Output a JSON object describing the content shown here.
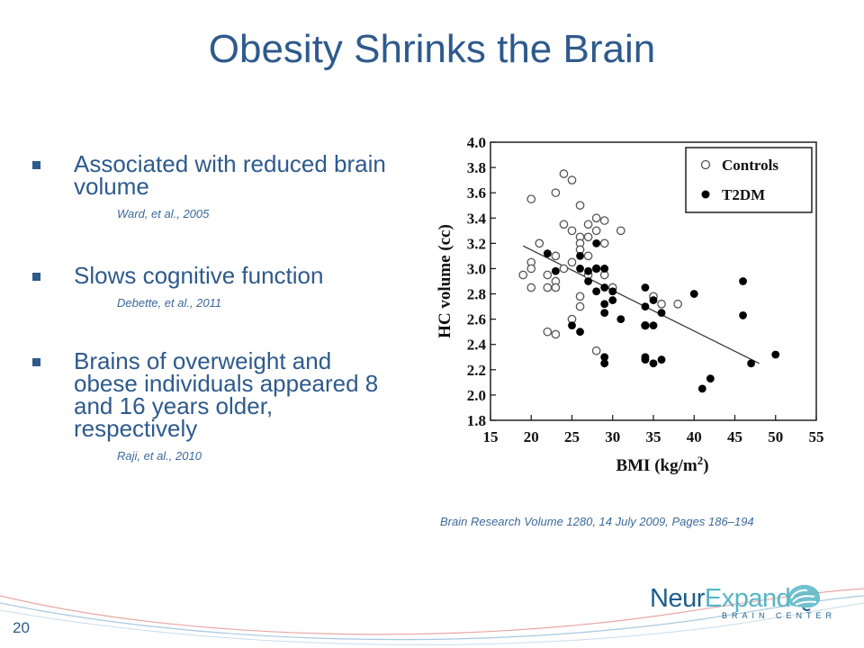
{
  "slide": {
    "title": "Obesity Shrinks the Brain",
    "page_number": "20",
    "accent_color": "#2e5a8c"
  },
  "bullets": [
    {
      "text": "Associated with reduced brain volume",
      "citation": "Ward, et al., 2005"
    },
    {
      "text": "Slows cognitive function",
      "citation": "Debette, et al., 2011"
    },
    {
      "text": "Brains of overweight and obese individuals appeared 8 and 16 years older, respectively",
      "citation": "Raji, et al., 2010"
    }
  ],
  "figure_source": "Brain Research Volume 1280, 14 July 2009, Pages 186–194",
  "logo": {
    "neur": "Neur",
    "expand": "Expand",
    "subtitle": "BRAIN CENTER",
    "colors": {
      "dark": "#1c5d8d",
      "light": "#56b6c6"
    }
  },
  "chart_data": {
    "type": "scatter",
    "title": "",
    "xlabel": "BMI (kg/m",
    "xlabel_superscript": "2",
    "xlabel_close": ")",
    "ylabel": "HC volume (cc)",
    "xlim": [
      15,
      55
    ],
    "ylim": [
      1.8,
      4.0
    ],
    "x_ticks": [
      "15",
      "20",
      "25",
      "30",
      "35",
      "40",
      "45",
      "50",
      "55"
    ],
    "y_ticks": [
      "1.8",
      "2.0",
      "2.2",
      "2.4",
      "2.6",
      "2.8",
      "3.0",
      "3.2",
      "3.4",
      "3.6",
      "3.8",
      "4.0"
    ],
    "legend_position": "top-right",
    "grid": false,
    "series": [
      {
        "name": "Controls",
        "marker": "open-circle",
        "points": [
          [
            19,
            2.95
          ],
          [
            20,
            3.55
          ],
          [
            20,
            3.05
          ],
          [
            20,
            3.0
          ],
          [
            20,
            2.85
          ],
          [
            21,
            3.2
          ],
          [
            22,
            2.95
          ],
          [
            22,
            2.85
          ],
          [
            22,
            2.5
          ],
          [
            23,
            3.6
          ],
          [
            23,
            3.1
          ],
          [
            23,
            2.9
          ],
          [
            23,
            2.85
          ],
          [
            23,
            2.48
          ],
          [
            24,
            3.75
          ],
          [
            24,
            3.35
          ],
          [
            24,
            3.0
          ],
          [
            25,
            3.7
          ],
          [
            25,
            3.3
          ],
          [
            25,
            3.05
          ],
          [
            25,
            2.6
          ],
          [
            26,
            3.5
          ],
          [
            26,
            3.25
          ],
          [
            26,
            3.2
          ],
          [
            26,
            3.15
          ],
          [
            26,
            2.78
          ],
          [
            26,
            2.7
          ],
          [
            27,
            3.35
          ],
          [
            27,
            3.25
          ],
          [
            27,
            3.1
          ],
          [
            27,
            2.95
          ],
          [
            28,
            3.4
          ],
          [
            28,
            3.3
          ],
          [
            28,
            3.0
          ],
          [
            28,
            2.35
          ],
          [
            29,
            3.38
          ],
          [
            29,
            3.2
          ],
          [
            29,
            2.95
          ],
          [
            30,
            2.85
          ],
          [
            31,
            3.3
          ],
          [
            34,
            2.55
          ],
          [
            35,
            2.78
          ],
          [
            36,
            2.72
          ],
          [
            38,
            2.72
          ]
        ]
      },
      {
        "name": "T2DM",
        "marker": "filled-circle",
        "points": [
          [
            22,
            3.12
          ],
          [
            23,
            2.98
          ],
          [
            25,
            2.55
          ],
          [
            26,
            3.1
          ],
          [
            26,
            3.0
          ],
          [
            26,
            2.5
          ],
          [
            27,
            2.98
          ],
          [
            27,
            2.9
          ],
          [
            28,
            3.2
          ],
          [
            28,
            3.0
          ],
          [
            28,
            2.82
          ],
          [
            29,
            3.0
          ],
          [
            29,
            2.85
          ],
          [
            29,
            2.72
          ],
          [
            29,
            2.65
          ],
          [
            29,
            2.3
          ],
          [
            29,
            2.25
          ],
          [
            30,
            2.82
          ],
          [
            30,
            2.75
          ],
          [
            31,
            2.6
          ],
          [
            34,
            2.85
          ],
          [
            34,
            2.7
          ],
          [
            34,
            2.55
          ],
          [
            34,
            2.3
          ],
          [
            34,
            2.28
          ],
          [
            35,
            2.75
          ],
          [
            35,
            2.55
          ],
          [
            35,
            2.25
          ],
          [
            36,
            2.65
          ],
          [
            36,
            2.28
          ],
          [
            40,
            2.8
          ],
          [
            41,
            2.05
          ],
          [
            42,
            2.13
          ],
          [
            46,
            2.9
          ],
          [
            46,
            2.63
          ],
          [
            47,
            2.25
          ],
          [
            50,
            2.32
          ]
        ]
      }
    ],
    "trendline": [
      [
        19,
        3.18
      ],
      [
        48,
        2.25
      ]
    ]
  }
}
